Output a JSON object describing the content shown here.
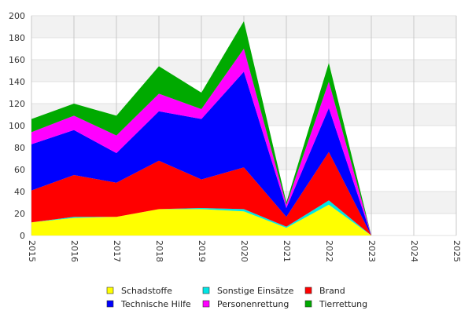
{
  "chart_data": {
    "type": "area",
    "stacked": true,
    "x": [
      "2015",
      "2016",
      "2017",
      "2018",
      "2019",
      "2020",
      "2021",
      "2022",
      "2023"
    ],
    "x_ticks": [
      "2015",
      "2016",
      "2017",
      "2018",
      "2019",
      "2020",
      "2021",
      "2022",
      "2023",
      "2024",
      "2025"
    ],
    "ylim": [
      0,
      200
    ],
    "y_ticks": [
      "0",
      "20",
      "40",
      "60",
      "80",
      "100",
      "120",
      "140",
      "160",
      "180",
      "200"
    ],
    "grid": true,
    "legend_position": "bottom",
    "series": [
      {
        "name": "Schadstoffe",
        "color": "#ffff00",
        "values": [
          12,
          16,
          17,
          24,
          24,
          22,
          7,
          28,
          0
        ]
      },
      {
        "name": "Sonstige Einsätze",
        "color": "#00e5e5",
        "values": [
          0,
          1,
          0,
          0,
          1,
          2,
          1,
          4,
          0
        ]
      },
      {
        "name": "Brand",
        "color": "#ff0000",
        "values": [
          29,
          38,
          31,
          44,
          26,
          38,
          9,
          44,
          0
        ]
      },
      {
        "name": "Technische Hilfe",
        "color": "#0000ff",
        "values": [
          42,
          41,
          27,
          45,
          55,
          87,
          8,
          40,
          0
        ]
      },
      {
        "name": "Personenrettung",
        "color": "#ff00ff",
        "values": [
          11,
          13,
          16,
          16,
          9,
          21,
          3,
          24,
          0
        ]
      },
      {
        "name": "Tierrettung",
        "color": "#00aa00",
        "values": [
          12,
          11,
          18,
          25,
          15,
          25,
          2,
          17,
          0
        ]
      }
    ],
    "legend_order": [
      "Schadstoffe",
      "Sonstige Einsätze",
      "Brand",
      "Technische Hilfe",
      "Personenrettung",
      "Tierrettung"
    ]
  }
}
